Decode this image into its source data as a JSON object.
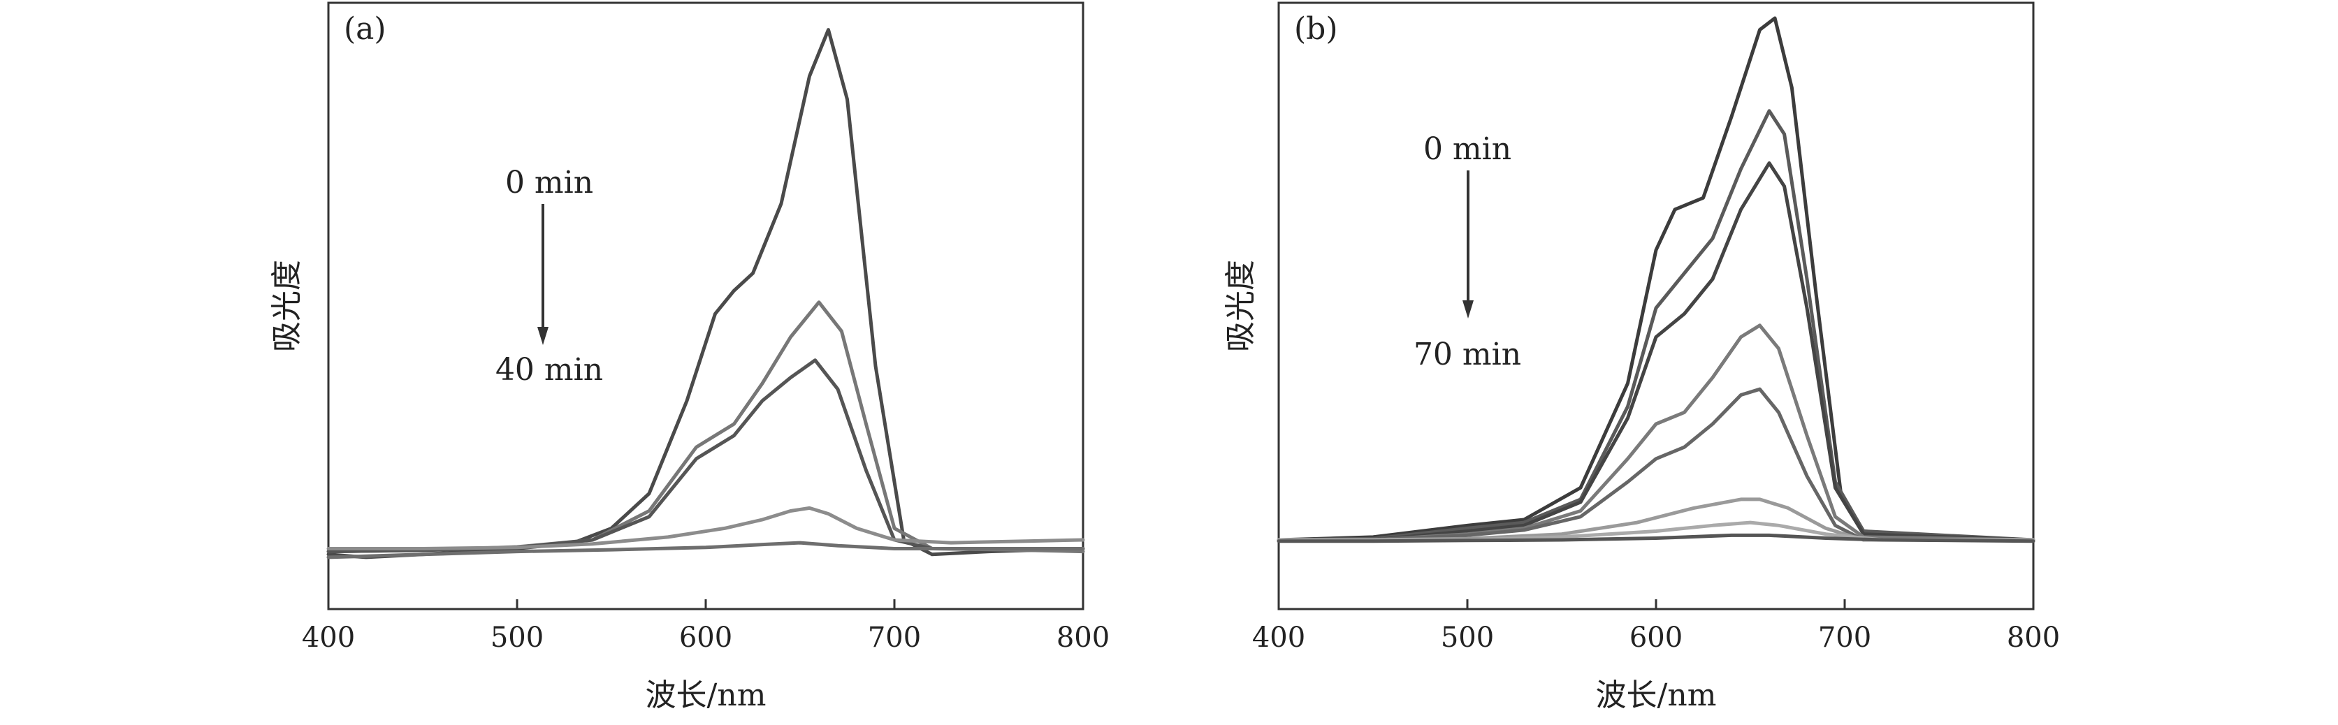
{
  "chart_data": [
    {
      "type": "line",
      "panel_label": "(a)",
      "xlabel": "波长/nm",
      "ylabel": "吸光度",
      "xlim": [
        400,
        800
      ],
      "ylim": [
        0,
        1.0
      ],
      "xticks": [
        "400",
        "500",
        "600",
        "700",
        "800"
      ],
      "annotation_top": "0 min",
      "annotation_bottom": "40 min",
      "series": [
        {
          "color": "#4a4a4a",
          "points": [
            [
              400,
              0.075
            ],
            [
              420,
              0.07
            ],
            [
              450,
              0.075
            ],
            [
              500,
              0.085
            ],
            [
              530,
              0.095
            ],
            [
              550,
              0.12
            ],
            [
              570,
              0.18
            ],
            [
              590,
              0.34
            ],
            [
              605,
              0.49
            ],
            [
              615,
              0.53
            ],
            [
              625,
              0.56
            ],
            [
              640,
              0.68
            ],
            [
              655,
              0.9
            ],
            [
              665,
              0.98
            ],
            [
              675,
              0.86
            ],
            [
              690,
              0.4
            ],
            [
              705,
              0.1
            ],
            [
              720,
              0.075
            ],
            [
              750,
              0.08
            ],
            [
              800,
              0.085
            ]
          ]
        },
        {
          "color": "#777777",
          "points": [
            [
              400,
              0.08
            ],
            [
              450,
              0.082
            ],
            [
              500,
              0.088
            ],
            [
              540,
              0.1
            ],
            [
              570,
              0.15
            ],
            [
              595,
              0.26
            ],
            [
              615,
              0.3
            ],
            [
              630,
              0.37
            ],
            [
              645,
              0.45
            ],
            [
              660,
              0.51
            ],
            [
              672,
              0.46
            ],
            [
              685,
              0.3
            ],
            [
              700,
              0.12
            ],
            [
              720,
              0.085
            ],
            [
              760,
              0.083
            ],
            [
              800,
              0.08
            ]
          ]
        },
        {
          "color": "#555555",
          "points": [
            [
              400,
              0.08
            ],
            [
              450,
              0.082
            ],
            [
              500,
              0.087
            ],
            [
              540,
              0.1
            ],
            [
              570,
              0.14
            ],
            [
              595,
              0.24
            ],
            [
              615,
              0.28
            ],
            [
              630,
              0.34
            ],
            [
              645,
              0.38
            ],
            [
              658,
              0.41
            ],
            [
              670,
              0.36
            ],
            [
              685,
              0.22
            ],
            [
              700,
              0.1
            ],
            [
              720,
              0.085
            ],
            [
              760,
              0.085
            ],
            [
              800,
              0.085
            ]
          ]
        },
        {
          "color": "#8c8c8c",
          "points": [
            [
              400,
              0.085
            ],
            [
              450,
              0.085
            ],
            [
              500,
              0.087
            ],
            [
              540,
              0.093
            ],
            [
              580,
              0.105
            ],
            [
              610,
              0.12
            ],
            [
              630,
              0.135
            ],
            [
              645,
              0.15
            ],
            [
              655,
              0.155
            ],
            [
              665,
              0.145
            ],
            [
              680,
              0.12
            ],
            [
              700,
              0.1
            ],
            [
              730,
              0.095
            ],
            [
              770,
              0.098
            ],
            [
              800,
              0.1
            ]
          ]
        },
        {
          "color": "#6e6e6e",
          "points": [
            [
              400,
              0.07
            ],
            [
              450,
              0.075
            ],
            [
              500,
              0.08
            ],
            [
              550,
              0.083
            ],
            [
              600,
              0.087
            ],
            [
              630,
              0.092
            ],
            [
              650,
              0.095
            ],
            [
              670,
              0.09
            ],
            [
              700,
              0.085
            ],
            [
              750,
              0.085
            ],
            [
              800,
              0.085
            ]
          ]
        }
      ]
    },
    {
      "type": "line",
      "panel_label": "(b)",
      "xlabel": "波长/nm",
      "ylabel": "吸光度",
      "xlim": [
        400,
        800
      ],
      "ylim": [
        0,
        1.0
      ],
      "xticks": [
        "400",
        "500",
        "600",
        "700",
        "800"
      ],
      "annotation_top": "0 min",
      "annotation_bottom": "70 min",
      "series": [
        {
          "color": "#3c3c3c",
          "points": [
            [
              400,
              0.1
            ],
            [
              450,
              0.105
            ],
            [
              500,
              0.125
            ],
            [
              530,
              0.135
            ],
            [
              560,
              0.19
            ],
            [
              585,
              0.37
            ],
            [
              600,
              0.6
            ],
            [
              610,
              0.67
            ],
            [
              625,
              0.69
            ],
            [
              640,
              0.83
            ],
            [
              655,
              0.98
            ],
            [
              663,
              1.0
            ],
            [
              672,
              0.88
            ],
            [
              685,
              0.52
            ],
            [
              698,
              0.18
            ],
            [
              710,
              0.115
            ],
            [
              750,
              0.105
            ],
            [
              800,
              0.1
            ]
          ]
        },
        {
          "color": "#5a5a5a",
          "points": [
            [
              400,
              0.1
            ],
            [
              450,
              0.102
            ],
            [
              500,
              0.12
            ],
            [
              530,
              0.13
            ],
            [
              560,
              0.17
            ],
            [
              585,
              0.33
            ],
            [
              600,
              0.5
            ],
            [
              615,
              0.56
            ],
            [
              630,
              0.62
            ],
            [
              645,
              0.74
            ],
            [
              660,
              0.84
            ],
            [
              668,
              0.8
            ],
            [
              680,
              0.55
            ],
            [
              695,
              0.2
            ],
            [
              710,
              0.115
            ],
            [
              800,
              0.1
            ]
          ]
        },
        {
          "color": "#444444",
          "points": [
            [
              400,
              0.1
            ],
            [
              450,
              0.1
            ],
            [
              500,
              0.115
            ],
            [
              530,
              0.125
            ],
            [
              560,
              0.165
            ],
            [
              585,
              0.31
            ],
            [
              600,
              0.45
            ],
            [
              615,
              0.49
            ],
            [
              630,
              0.55
            ],
            [
              645,
              0.67
            ],
            [
              660,
              0.75
            ],
            [
              668,
              0.71
            ],
            [
              680,
              0.5
            ],
            [
              695,
              0.19
            ],
            [
              710,
              0.11
            ],
            [
              800,
              0.1
            ]
          ]
        },
        {
          "color": "#7a7a7a",
          "points": [
            [
              400,
              0.1
            ],
            [
              450,
              0.1
            ],
            [
              500,
              0.11
            ],
            [
              530,
              0.12
            ],
            [
              560,
              0.15
            ],
            [
              585,
              0.24
            ],
            [
              600,
              0.3
            ],
            [
              615,
              0.32
            ],
            [
              630,
              0.38
            ],
            [
              645,
              0.45
            ],
            [
              655,
              0.47
            ],
            [
              665,
              0.43
            ],
            [
              680,
              0.28
            ],
            [
              695,
              0.14
            ],
            [
              710,
              0.105
            ],
            [
              800,
              0.1
            ]
          ]
        },
        {
          "color": "#666666",
          "points": [
            [
              400,
              0.1
            ],
            [
              450,
              0.1
            ],
            [
              500,
              0.108
            ],
            [
              530,
              0.117
            ],
            [
              560,
              0.14
            ],
            [
              585,
              0.2
            ],
            [
              600,
              0.24
            ],
            [
              615,
              0.26
            ],
            [
              630,
              0.3
            ],
            [
              645,
              0.35
            ],
            [
              655,
              0.36
            ],
            [
              665,
              0.32
            ],
            [
              680,
              0.21
            ],
            [
              695,
              0.125
            ],
            [
              710,
              0.1
            ],
            [
              800,
              0.1
            ]
          ]
        },
        {
          "color": "#9a9a9a",
          "points": [
            [
              400,
              0.1
            ],
            [
              450,
              0.1
            ],
            [
              500,
              0.102
            ],
            [
              550,
              0.11
            ],
            [
              590,
              0.13
            ],
            [
              620,
              0.155
            ],
            [
              645,
              0.17
            ],
            [
              655,
              0.17
            ],
            [
              670,
              0.155
            ],
            [
              690,
              0.12
            ],
            [
              710,
              0.1
            ],
            [
              800,
              0.1
            ]
          ]
        },
        {
          "color": "#aaaaaa",
          "points": [
            [
              400,
              0.1
            ],
            [
              450,
              0.1
            ],
            [
              500,
              0.1
            ],
            [
              550,
              0.105
            ],
            [
              600,
              0.115
            ],
            [
              630,
              0.125
            ],
            [
              650,
              0.13
            ],
            [
              665,
              0.125
            ],
            [
              690,
              0.11
            ],
            [
              720,
              0.1
            ],
            [
              800,
              0.1
            ]
          ]
        },
        {
          "color": "#555555",
          "points": [
            [
              400,
              0.098
            ],
            [
              450,
              0.098
            ],
            [
              500,
              0.099
            ],
            [
              550,
              0.1
            ],
            [
              600,
              0.103
            ],
            [
              640,
              0.108
            ],
            [
              660,
              0.108
            ],
            [
              690,
              0.103
            ],
            [
              720,
              0.1
            ],
            [
              800,
              0.098
            ]
          ]
        }
      ]
    }
  ]
}
